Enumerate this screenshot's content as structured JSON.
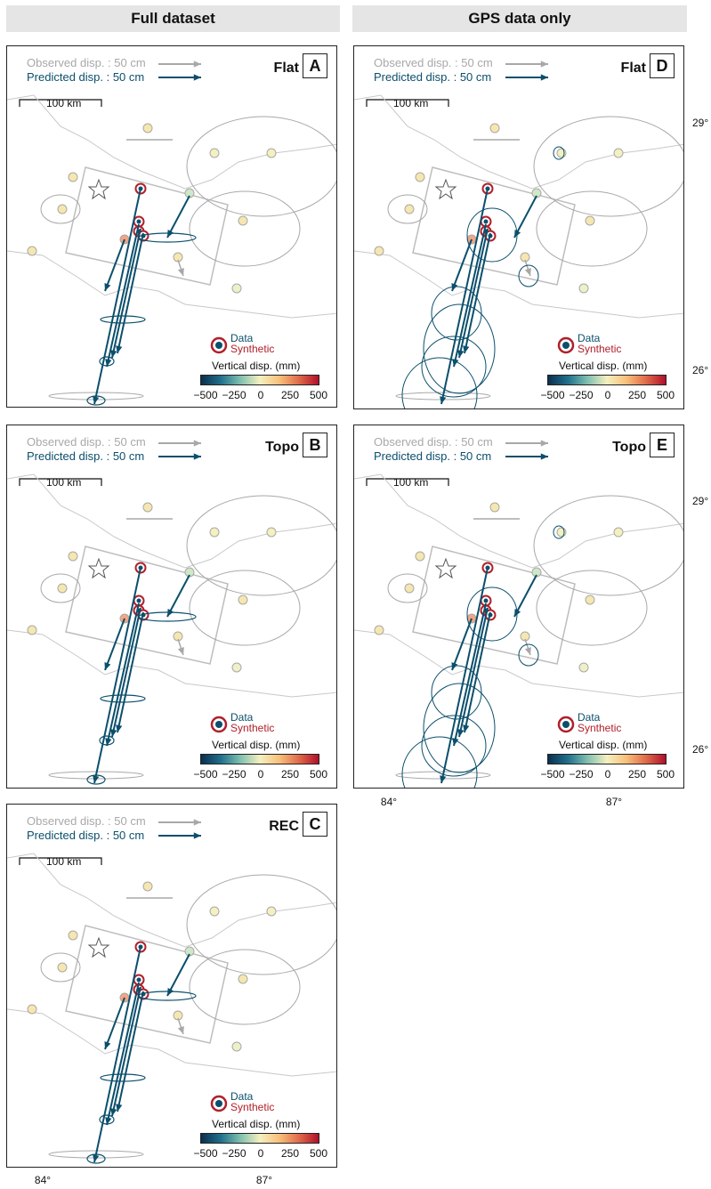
{
  "columns": {
    "left": "Full dataset",
    "right": "GPS data only"
  },
  "legend": {
    "observed": "Observed disp. : 50 cm",
    "predicted": "Predicted disp. : 50 cm",
    "scale": "100 km",
    "data": "Data",
    "synthetic": "Synthetic",
    "colorbar_title": "Vertical disp. (mm)",
    "colorbar_ticks": [
      "−500",
      "−250",
      "0",
      "250",
      "500"
    ]
  },
  "panels": [
    {
      "title": "Flat",
      "letter": "A"
    },
    {
      "title": "Topo",
      "letter": "B"
    },
    {
      "title": "REC",
      "letter": "C"
    },
    {
      "title": "Flat",
      "letter": "D"
    },
    {
      "title": "Topo",
      "letter": "E"
    }
  ],
  "axes": {
    "lat_labels": [
      "29°",
      "26°"
    ],
    "lon_labels": [
      "84°",
      "87°"
    ]
  },
  "colors": {
    "predicted": "#0b4f6c",
    "observed": "#a8a8a8",
    "synthetic": "#b0202a"
  }
}
